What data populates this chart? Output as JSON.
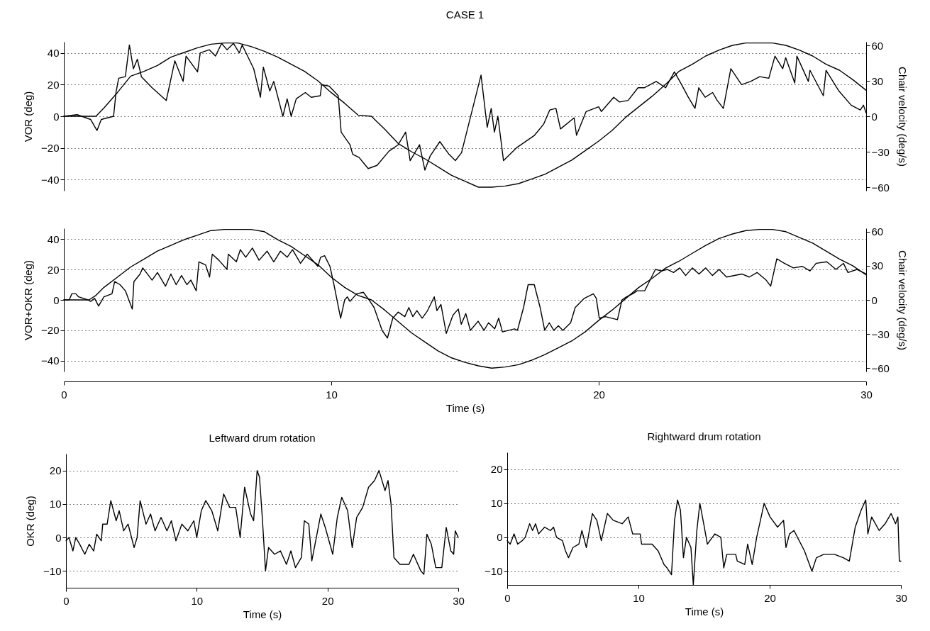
{
  "chart_data": [
    {
      "type": "line",
      "title": "CASE 1",
      "ylabel": "VOR (deg)",
      "y2label": "Chair velocity (deg/s)",
      "xlim": [
        0,
        30
      ],
      "ylim": [
        -47,
        47
      ],
      "yticks": [
        -40,
        -20,
        0,
        20,
        40
      ],
      "y2lim": [
        -63,
        63
      ],
      "y2ticks": [
        -60,
        -30,
        0,
        30,
        60
      ],
      "tick_labels": "y",
      "grid": "y",
      "line_style": "solid",
      "series": [
        {
          "color": "#000000",
          "x": [
            0,
            0.5,
            1.0,
            1.24,
            1.4,
            1.86,
            1.95,
            2.05,
            2.3,
            2.45,
            2.6,
            2.75,
            2.9,
            3.3,
            3.83,
            4.15,
            4.46,
            4.57,
            5.0,
            5.1,
            5.44,
            5.67,
            5.9,
            6.1,
            6.34,
            6.56,
            6.67,
            7.1,
            7.35,
            7.46,
            7.7,
            7.85,
            8.19,
            8.35,
            8.5,
            8.69,
            9.03,
            9.25,
            9.59,
            9.64,
            9.92,
            10.26,
            10.37,
            10.7,
            10.8,
            11.04,
            11.38,
            11.71,
            12.16,
            12.5,
            12.78,
            12.95,
            13.3,
            13.5,
            13.7,
            14.06,
            14.4,
            14.64,
            14.87,
            15.6,
            15.83,
            15.98,
            16.1,
            16.23,
            16.44,
            16.92,
            17.6,
            17.94,
            18.17,
            18.4,
            18.57,
            19.08,
            19.17,
            19.53,
            20,
            20.1,
            20.56,
            20.78,
            21.1,
            21.47,
            21.7,
            22.15,
            22.5,
            22.83,
            23.1,
            23.35,
            23.6,
            23.74,
            23.98,
            24.26,
            24.43,
            24.66,
            24.94,
            25.34,
            25.68,
            26.02,
            26.36,
            26.59,
            26.88,
            26.99,
            27.33,
            27.41,
            27.84,
            27.9,
            28.4,
            28.5,
            28.98,
            29.44,
            29.78,
            29.9,
            30
          ],
          "values": [
            0,
            1,
            -2,
            -9,
            -2,
            0,
            15,
            24,
            25,
            45,
            30,
            36,
            25,
            18,
            10,
            35,
            22,
            38,
            28,
            40,
            42,
            38,
            46,
            42,
            46,
            40,
            45,
            30,
            12,
            31,
            16,
            22,
            0,
            11,
            0,
            11,
            15,
            12,
            13,
            20,
            19,
            13,
            -10,
            -18,
            -24,
            -26,
            -33,
            -31,
            -22,
            -18,
            -10,
            -28,
            -18,
            -34,
            -25,
            -16,
            -24,
            -28,
            -23,
            26,
            -7,
            5,
            -10,
            0,
            -28,
            -20,
            -12,
            -5,
            4,
            5,
            -8,
            -1,
            -12,
            3,
            6,
            3,
            12,
            9,
            10,
            18,
            18,
            22,
            18,
            28,
            20,
            12,
            5,
            18,
            12,
            15,
            10,
            5,
            30,
            20,
            22,
            25,
            24,
            38,
            30,
            37,
            21,
            38,
            22,
            29,
            13,
            29,
            16,
            7,
            4,
            7,
            2
          ]
        },
        {
          "color": "#000000",
          "axis": "y2",
          "x": [
            0,
            1.2,
            1.5,
            2,
            2.5,
            3,
            3.5,
            4,
            4.5,
            5,
            5.5,
            6,
            6.5,
            7,
            7.5,
            8,
            8.5,
            9,
            9.5,
            10,
            10.5,
            11,
            11.5,
            12,
            12.5,
            13,
            13.5,
            14,
            14.5,
            15,
            15.5,
            16,
            16.5,
            17,
            17.5,
            18,
            18.5,
            19,
            19.5,
            20,
            20.5,
            21,
            21.5,
            22,
            22.5,
            23,
            23.5,
            24,
            24.5,
            25,
            25.5,
            26,
            26.5,
            27,
            27.5,
            28,
            28.5,
            29,
            29.5,
            30
          ],
          "values": [
            0,
            0,
            7,
            20,
            34,
            38,
            43,
            50,
            54,
            58,
            61,
            62,
            62,
            59,
            55,
            50,
            44,
            38,
            30,
            20,
            11,
            1,
            0,
            -11,
            -23,
            -30,
            -36,
            -43,
            -50,
            -55,
            -60,
            -60,
            -59,
            -57,
            -53,
            -49,
            -43,
            -37,
            -29,
            -21,
            -12,
            -1,
            8,
            17,
            27,
            38,
            44,
            51,
            56,
            60,
            62,
            62,
            62,
            60,
            56,
            51,
            44,
            39,
            31,
            22
          ]
        }
      ]
    },
    {
      "type": "line",
      "xlabel": "Time (s)",
      "ylabel": "VOR+OKR (deg)",
      "y2label": "Chair velocity (deg/s)",
      "xlim": [
        0,
        30
      ],
      "xticks": [
        0,
        10,
        20,
        30
      ],
      "ylim": [
        -47,
        47
      ],
      "yticks": [
        -40,
        -20,
        0,
        20,
        40
      ],
      "y2lim": [
        -63,
        63
      ],
      "y2ticks": [
        -60,
        -30,
        0,
        30,
        60
      ],
      "grid": "y",
      "line_style": "solid",
      "series": [
        {
          "color": "#000000",
          "x": [
            0,
            0.2,
            0.3,
            0.45,
            0.55,
            0.9,
            1.0,
            1.15,
            1.3,
            1.5,
            1.8,
            1.9,
            2.1,
            2.3,
            2.56,
            2.62,
            2.85,
            2.95,
            3.3,
            3.5,
            3.8,
            4.0,
            4.2,
            4.4,
            4.6,
            4.75,
            4.95,
            5.05,
            5.3,
            5.45,
            5.55,
            5.8,
            6.1,
            6.15,
            6.45,
            6.6,
            6.8,
            7.05,
            7.3,
            7.6,
            7.85,
            8.1,
            8.35,
            8.55,
            8.85,
            9.1,
            9.5,
            9.6,
            9.75,
            9.95,
            10.1,
            10.35,
            10.5,
            10.6,
            10.7,
            10.95,
            11.2,
            11.45,
            11.6,
            11.9,
            12.1,
            12.3,
            12.5,
            12.75,
            12.9,
            13.05,
            13.2,
            13.4,
            13.6,
            13.85,
            13.95,
            14.1,
            14.3,
            14.55,
            14.75,
            14.86,
            15.03,
            15.2,
            15.49,
            15.71,
            15.88,
            16.11,
            16.26,
            16.4,
            16.85,
            16.96,
            17.19,
            17.36,
            17.59,
            17.81,
            17.98,
            18.15,
            18.32,
            18.49,
            18.66,
            18.95,
            19.12,
            19.46,
            19.8,
            19.91,
            20.02,
            20.25,
            20.7,
            20.87,
            21.04,
            21.27,
            21.44,
            21.72,
            21.89,
            22.12,
            22.35,
            22.57,
            22.8,
            23.03,
            23.25,
            23.5,
            23.75,
            24.0,
            24.25,
            24.5,
            24.78,
            25.35,
            25.63,
            25.92,
            26.26,
            26.43,
            26.66,
            26.94,
            27.28,
            27.62,
            27.9,
            28.13,
            28.53,
            28.87,
            29.15,
            29.32,
            29.66,
            30
          ],
          "values": [
            0,
            0,
            4,
            4,
            2,
            0,
            -1,
            1,
            -4,
            2,
            4,
            12,
            10,
            6,
            -6,
            12,
            17,
            21,
            13,
            18,
            9,
            17,
            10,
            16,
            10,
            13,
            6,
            25,
            23,
            15,
            30,
            26,
            20,
            30,
            25,
            33,
            28,
            34,
            26,
            32,
            25,
            32,
            28,
            33,
            24,
            30,
            22,
            28,
            29,
            22,
            10,
            -12,
            0,
            2,
            -1,
            4,
            5,
            -1,
            -5,
            -20,
            -25,
            -12,
            -8,
            -11,
            -5,
            -11,
            -7,
            -12,
            -7,
            2,
            -7,
            -3,
            -22,
            -10,
            -6,
            -16,
            -9,
            -20,
            -14,
            -20,
            -15,
            -19,
            -12,
            -21,
            -19,
            -20,
            -5,
            10,
            10,
            -5,
            -20,
            -15,
            -20,
            -17,
            -20,
            -15,
            -5,
            1,
            4,
            1,
            -12,
            -11,
            -13,
            0,
            2,
            4,
            6,
            6,
            12,
            20,
            19,
            20,
            18,
            21,
            16,
            21,
            17,
            21,
            16,
            20,
            15,
            17,
            15,
            18,
            13,
            9,
            27,
            24,
            21,
            22,
            19,
            24,
            25,
            20,
            24,
            18,
            20,
            17
          ]
        },
        {
          "color": "#000000",
          "axis": "y2",
          "x": [
            0,
            0.94,
            1.2,
            1.5,
            2,
            2.5,
            3,
            3.5,
            4,
            4.5,
            5,
            5.5,
            6,
            6.5,
            7,
            7.5,
            8,
            8.5,
            9,
            9.5,
            10,
            10.5,
            11,
            11.5,
            12,
            12.5,
            13,
            13.5,
            14,
            14.5,
            15,
            15.5,
            16,
            16.5,
            17,
            17.5,
            18,
            18.5,
            19,
            19.5,
            20,
            20.5,
            21,
            21.5,
            22,
            22.5,
            23,
            23.5,
            24,
            24.5,
            25,
            25.5,
            26,
            26.5,
            27,
            27.5,
            28,
            28.5,
            29,
            29.5,
            30
          ],
          "values": [
            0,
            0,
            4,
            11,
            20,
            29,
            36,
            43,
            48,
            53,
            57,
            61,
            62,
            62,
            62,
            60,
            53,
            47,
            39,
            31,
            20,
            11,
            4,
            0,
            -9,
            -19,
            -29,
            -37,
            -45,
            -51,
            -55,
            -58,
            -60,
            -59,
            -57,
            -53,
            -48,
            -42,
            -36,
            -28,
            -18,
            -9,
            1,
            11,
            19,
            28,
            34,
            41,
            48,
            54,
            58,
            61,
            62,
            62,
            60,
            55,
            50,
            43,
            36,
            30,
            22
          ]
        }
      ]
    },
    {
      "type": "line",
      "title": "Leftward drum rotation",
      "xlabel": "Time (s)",
      "ylabel": "OKR (deg)",
      "xlim": [
        0,
        30
      ],
      "xticks": [
        0,
        10,
        20,
        30
      ],
      "ylim": [
        -15,
        25
      ],
      "yticks": [
        -10,
        0,
        10,
        20
      ],
      "grid": "y",
      "line_style": "solid",
      "series": [
        {
          "color": "#000000",
          "x": [
            0,
            0.23,
            0.53,
            0.75,
            1.05,
            1.44,
            1.78,
            2.12,
            2.35,
            2.7,
            2.81,
            3.15,
            3.43,
            3.84,
            4.07,
            4.41,
            4.75,
            5.21,
            5.44,
            5.67,
            6.12,
            6.47,
            6.81,
            7.27,
            7.72,
            8.06,
            8.41,
            8.86,
            9.32,
            9.78,
            10.0,
            10.35,
            10.69,
            11.15,
            11.61,
            12.06,
            12.52,
            12.98,
            13.32,
            13.66,
            14.12,
            14.35,
            14.62,
            14.8,
            15.03,
            15.26,
            15.49,
            15.95,
            16.4,
            16.86,
            17.2,
            17.55,
            18.0,
            18.23,
            18.57,
            18.8,
            19.49,
            19.83,
            20.4,
            20.75,
            21.09,
            21.54,
            21.89,
            22.23,
            22.69,
            23.14,
            23.6,
            23.94,
            24.4,
            24.63,
            24.86,
            25.08,
            25.54,
            26.23,
            26.57,
            27.14,
            27.37,
            27.6,
            27.94,
            28.28,
            28.74,
            29.08,
            29.43,
            29.65,
            29.77,
            30
          ],
          "values": [
            -1,
            0,
            -4,
            0,
            -2,
            -5,
            -2,
            -4,
            1,
            -1,
            4,
            4,
            11,
            5,
            8,
            2,
            4,
            -3,
            0,
            11,
            4,
            7,
            2,
            6,
            2,
            5,
            -1,
            4,
            2,
            5,
            0,
            8,
            11,
            8,
            2,
            13,
            9,
            9,
            0,
            15,
            7,
            5,
            20,
            18,
            5,
            -10,
            -3,
            -5,
            -4,
            -8,
            -4,
            -9,
            -6,
            5,
            4,
            -7,
            7,
            3,
            -5,
            6,
            12,
            8,
            -3,
            6,
            9,
            15,
            17,
            20,
            14,
            17,
            10,
            -6,
            -8,
            -8,
            -5,
            -10,
            -11,
            1,
            -2,
            -9,
            -9,
            3,
            -4,
            -5,
            2,
            0
          ]
        }
      ]
    },
    {
      "type": "line",
      "title": "Rightward drum rotation",
      "xlabel": "Time (s)",
      "xlim": [
        0,
        30
      ],
      "xticks": [
        0,
        10,
        20,
        30
      ],
      "ylim": [
        -14,
        25
      ],
      "yticks": [
        -10,
        0,
        10,
        20
      ],
      "grid": "y",
      "line_style": "solid",
      "series": [
        {
          "color": "#000000",
          "x": [
            0,
            0.23,
            0.52,
            0.8,
            1.14,
            1.37,
            1.71,
            1.93,
            2.16,
            2.39,
            2.85,
            3.3,
            3.53,
            3.76,
            4.21,
            4.44,
            4.67,
            5.01,
            5.46,
            5.69,
            6.03,
            6.49,
            6.83,
            7.17,
            7.63,
            8.08,
            8.76,
            9.22,
            9.56,
            10.13,
            10.24,
            11.04,
            11.5,
            11.95,
            12.18,
            12.52,
            12.75,
            12.98,
            13.2,
            13.43,
            13.66,
            14.0,
            14.18,
            14.45,
            14.68,
            15.02,
            15.25,
            15.82,
            16.28,
            16.5,
            16.73,
            17.41,
            17.53,
            18.1,
            18.32,
            18.67,
            19.01,
            19.58,
            20.03,
            20.6,
            21.06,
            21.24,
            21.51,
            21.85,
            22.65,
            23.22,
            23.56,
            24.13,
            24.93,
            25.61,
            26.07,
            26.52,
            26.97,
            27.32,
            27.48,
            27.77,
            28.34,
            28.8,
            29.25,
            29.59,
            29.77,
            29.88,
            30
          ],
          "values": [
            -1,
            -2,
            1,
            -2,
            -1,
            0,
            4,
            2,
            4,
            1,
            3,
            2,
            3,
            0,
            -1,
            -4,
            -6,
            -3,
            -2,
            2,
            -3,
            7,
            5,
            -1,
            7,
            5,
            4,
            6,
            1,
            1,
            -2,
            -2,
            -4,
            -8,
            -9,
            -11,
            5,
            11,
            8,
            -6,
            0,
            -3,
            -14,
            2,
            10,
            3,
            -2,
            1,
            0,
            -9,
            -5,
            -5,
            -7,
            -8,
            -2,
            -8,
            0,
            10,
            6,
            3,
            5,
            -3,
            1,
            2,
            -4,
            -10,
            -6,
            -5,
            -5,
            -6,
            -7,
            3,
            8,
            11,
            1,
            6,
            2,
            4,
            7,
            4,
            6,
            -7,
            -7
          ]
        }
      ]
    }
  ]
}
